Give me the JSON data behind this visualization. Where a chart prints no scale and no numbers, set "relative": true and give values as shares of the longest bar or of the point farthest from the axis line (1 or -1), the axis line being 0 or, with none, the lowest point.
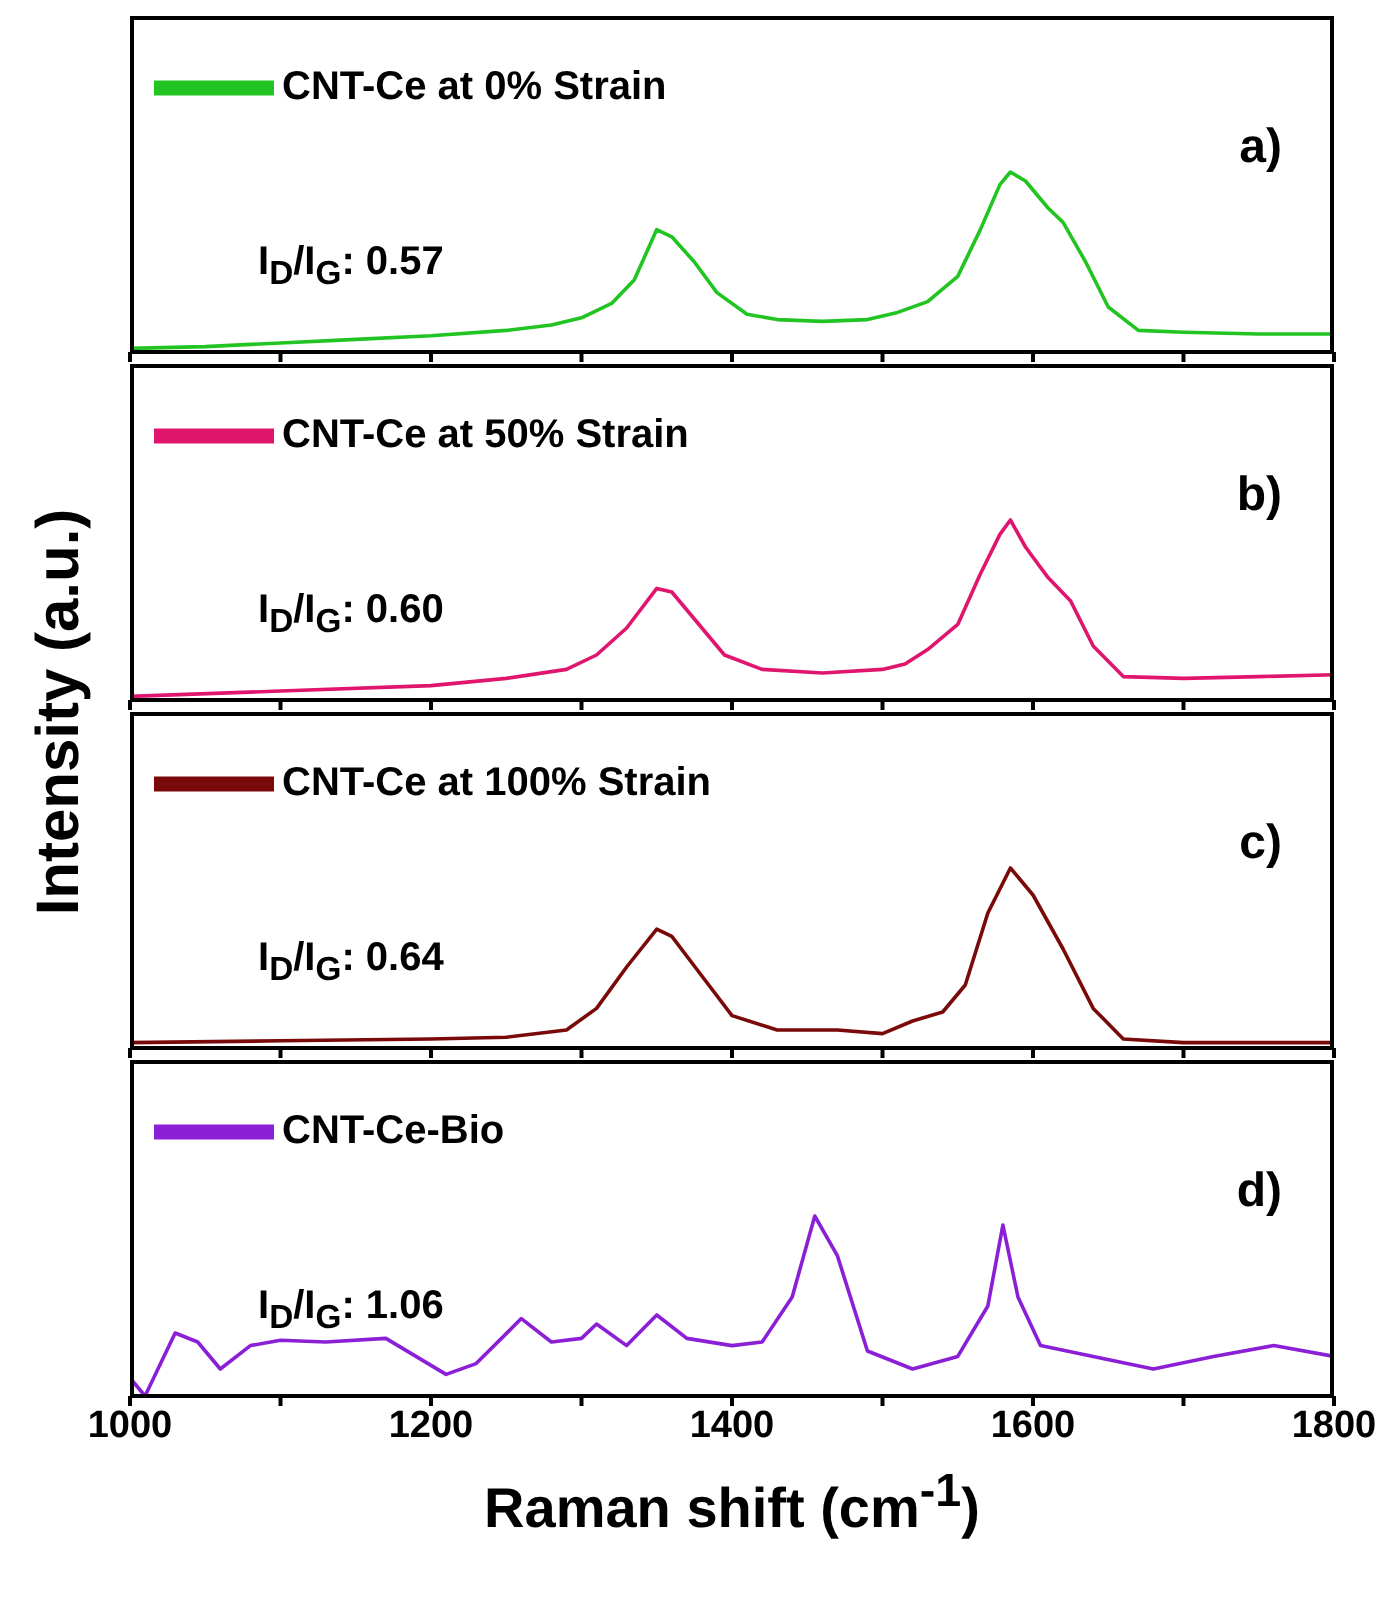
{
  "chart_data": [
    {
      "type": "line",
      "relative": true,
      "ylabel": "Intensity (a.u.)",
      "xlim": [
        1000,
        1800
      ],
      "xticks": [
        1000,
        {
          "value": 1100,
          "label": null
        },
        1200,
        {
          "value": 1300,
          "label": null
        },
        1400,
        {
          "value": 1500,
          "label": null
        },
        1600,
        {
          "value": 1700,
          "label": null
        },
        1800
      ],
      "tick_labels": false,
      "legend": "top left",
      "annotations": [
        "I$_{D}$/I$_{G}$: 0.57",
        "a)"
      ],
      "series": [
        {
          "name": "CNT-Ce at 0% Strain",
          "color": "#22c422",
          "x": [
            1000,
            1050,
            1100,
            1150,
            1200,
            1250,
            1280,
            1300,
            1320,
            1335,
            1350,
            1360,
            1375,
            1390,
            1410,
            1430,
            1460,
            1490,
            1510,
            1530,
            1550,
            1565,
            1578,
            1585,
            1595,
            1610,
            1620,
            1635,
            1650,
            1670,
            1700,
            1750,
            1800
          ],
          "values": [
            0.02,
            0.03,
            0.05,
            0.07,
            0.09,
            0.12,
            0.15,
            0.19,
            0.27,
            0.4,
            0.68,
            0.64,
            0.5,
            0.33,
            0.21,
            0.18,
            0.17,
            0.18,
            0.22,
            0.28,
            0.42,
            0.68,
            0.93,
            1,
            0.95,
            0.8,
            0.72,
            0.5,
            0.25,
            0.12,
            0.11,
            0.1,
            0.1
          ]
        }
      ]
    },
    {
      "type": "line",
      "relative": true,
      "xlim": [
        1000,
        1800
      ],
      "xticks": [
        1000,
        {
          "value": 1100,
          "label": null
        },
        1200,
        {
          "value": 1300,
          "label": null
        },
        1400,
        {
          "value": 1500,
          "label": null
        },
        1600,
        {
          "value": 1700,
          "label": null
        },
        1800
      ],
      "tick_labels": false,
      "legend": "top left",
      "annotations": [
        "I$_{D}$/I$_{G}$: 0.60",
        "b)"
      ],
      "series": [
        {
          "name": "CNT-Ce at 50% Strain",
          "color": "#e0156e",
          "x": [
            1000,
            1100,
            1200,
            1250,
            1290,
            1310,
            1330,
            1350,
            1360,
            1375,
            1395,
            1420,
            1460,
            1500,
            1515,
            1530,
            1550,
            1565,
            1578,
            1585,
            1595,
            1610,
            1625,
            1640,
            1660,
            1700,
            1750,
            1800
          ],
          "values": [
            0.02,
            0.05,
            0.08,
            0.12,
            0.17,
            0.25,
            0.4,
            0.62,
            0.6,
            0.45,
            0.25,
            0.17,
            0.15,
            0.17,
            0.2,
            0.28,
            0.42,
            0.7,
            0.92,
            1,
            0.85,
            0.68,
            0.55,
            0.3,
            0.13,
            0.12,
            0.13,
            0.14
          ]
        }
      ]
    },
    {
      "type": "line",
      "relative": true,
      "xlim": [
        1000,
        1800
      ],
      "xticks": [
        1000,
        {
          "value": 1100,
          "label": null
        },
        1200,
        {
          "value": 1300,
          "label": null
        },
        1400,
        {
          "value": 1500,
          "label": null
        },
        1600,
        {
          "value": 1700,
          "label": null
        },
        1800
      ],
      "tick_labels": false,
      "legend": "top left",
      "annotations": [
        "I$_{D}$/I$_{G}$: 0.64",
        "c)"
      ],
      "series": [
        {
          "name": "CNT-Ce at 100% Strain",
          "color": "#7a0a0a",
          "x": [
            1000,
            1100,
            1200,
            1250,
            1290,
            1310,
            1330,
            1350,
            1360,
            1380,
            1400,
            1430,
            1470,
            1500,
            1520,
            1540,
            1555,
            1570,
            1585,
            1600,
            1620,
            1640,
            1660,
            1700,
            1800
          ],
          "values": [
            0.03,
            0.04,
            0.05,
            0.06,
            0.1,
            0.22,
            0.45,
            0.66,
            0.62,
            0.4,
            0.18,
            0.1,
            0.1,
            0.08,
            0.15,
            0.2,
            0.35,
            0.75,
            1,
            0.85,
            0.55,
            0.22,
            0.05,
            0.03,
            0.03
          ]
        }
      ]
    },
    {
      "type": "line",
      "relative": true,
      "xlabel": "Raman shift (cm$^{-1}$)",
      "xlim": [
        1000,
        1800
      ],
      "xticks": [
        1000,
        {
          "value": 1100,
          "label": null
        },
        1200,
        {
          "value": 1300,
          "label": null
        },
        1400,
        {
          "value": 1500,
          "label": null
        },
        1600,
        {
          "value": 1700,
          "label": null
        },
        1800
      ],
      "tick_labels": "x",
      "legend": "top left",
      "annotations": [
        "I$_{D}$/I$_{G}$: 1.06",
        "d)"
      ],
      "series": [
        {
          "name": "CNT-Ce-Bio",
          "color": "#8a1fd6",
          "x": [
            1000,
            1010,
            1030,
            1045,
            1060,
            1080,
            1100,
            1130,
            1170,
            1190,
            1210,
            1230,
            1260,
            1280,
            1300,
            1310,
            1330,
            1350,
            1370,
            1400,
            1420,
            1440,
            1455,
            1470,
            1490,
            1520,
            1550,
            1570,
            1580,
            1590,
            1605,
            1640,
            1680,
            1720,
            1760,
            1800
          ],
          "values": [
            0.1,
            0,
            0.35,
            0.3,
            0.15,
            0.28,
            0.31,
            0.3,
            0.32,
            0.22,
            0.12,
            0.18,
            0.43,
            0.3,
            0.32,
            0.4,
            0.28,
            0.45,
            0.32,
            0.28,
            0.3,
            0.55,
            1,
            0.78,
            0.25,
            0.15,
            0.22,
            0.5,
            0.95,
            0.55,
            0.28,
            0.22,
            0.15,
            0.22,
            0.28,
            0.22
          ]
        }
      ]
    }
  ]
}
